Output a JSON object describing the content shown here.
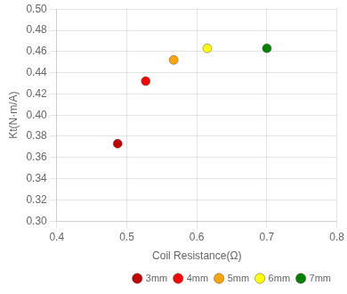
{
  "chart_data": {
    "type": "scatter",
    "xlabel": "Coil Resistance(Ω)",
    "ylabel": "Kt(N·m/A)",
    "series": [
      {
        "name": "3mm",
        "color": "#C00000",
        "x": [
          0.487
        ],
        "values": [
          0.373
        ]
      },
      {
        "name": "4mm",
        "color": "#FF0000",
        "x": [
          0.527
        ],
        "values": [
          0.432
        ]
      },
      {
        "name": "5mm",
        "color": "#FFA500",
        "x": [
          0.567
        ],
        "values": [
          0.452
        ]
      },
      {
        "name": "6mm",
        "color": "#FFFF00",
        "x": [
          0.615
        ],
        "values": [
          0.463
        ]
      },
      {
        "name": "7mm",
        "color": "#008000",
        "x": [
          0.7
        ],
        "values": [
          0.463
        ]
      }
    ],
    "xlim": [
      0.4,
      0.8
    ],
    "xticks": [
      0.4,
      0.5,
      0.6,
      0.7,
      0.8
    ],
    "ylim": [
      0.3,
      0.5
    ],
    "yticks": [
      {
        "value": 0.3,
        "label": "0.30"
      },
      0.32,
      0.34,
      0.36,
      0.38,
      {
        "value": 0.4,
        "label": "0.40"
      },
      0.42,
      0.44,
      0.46,
      0.48,
      {
        "value": 0.5,
        "label": "0.50"
      }
    ],
    "grid": true,
    "legend": "lower right"
  }
}
